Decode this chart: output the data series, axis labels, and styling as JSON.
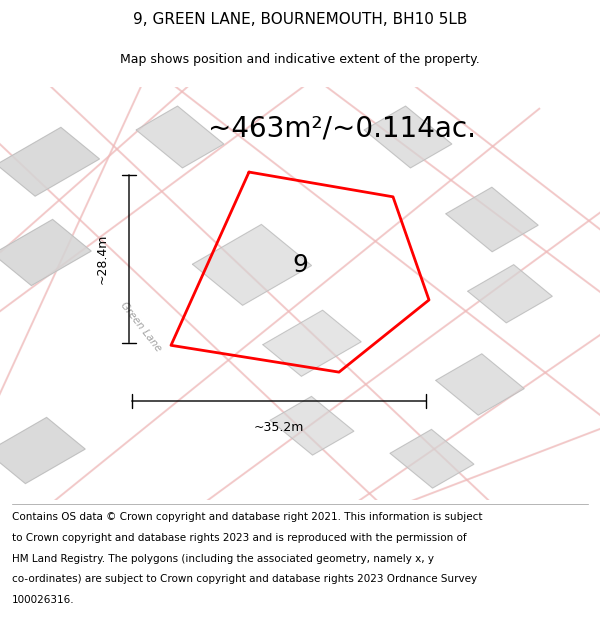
{
  "title_line1": "9, GREEN LANE, BOURNEMOUTH, BH10 5LB",
  "title_line2": "Map shows position and indicative extent of the property.",
  "area_text": "~463m²/~0.114ac.",
  "width_label": "~35.2m",
  "height_label": "~28.4m",
  "property_number": "9",
  "footer_lines": [
    "Contains OS data © Crown copyright and database right 2021. This information is subject",
    "to Crown copyright and database rights 2023 and is reproduced with the permission of",
    "HM Land Registry. The polygons (including the associated geometry, namely x, y",
    "co-ordinates) are subject to Crown copyright and database rights 2023 Ordnance Survey",
    "100026316."
  ],
  "map_bg_color": "#ffffff",
  "road_color": "#f0b8b8",
  "road_outline_color": "#d89090",
  "building_color": "#d4d4d4",
  "building_outline_color": "#aaaaaa",
  "plot_color": "#ff0000",
  "title_fontsize": 11,
  "subtitle_fontsize": 9,
  "area_fontsize": 20,
  "label_fontsize": 9,
  "footer_fontsize": 7.5,
  "road_label_color": "#aaaaaa",
  "road_label_fontsize": 7.5,
  "green_lane_label_color": "#999999"
}
